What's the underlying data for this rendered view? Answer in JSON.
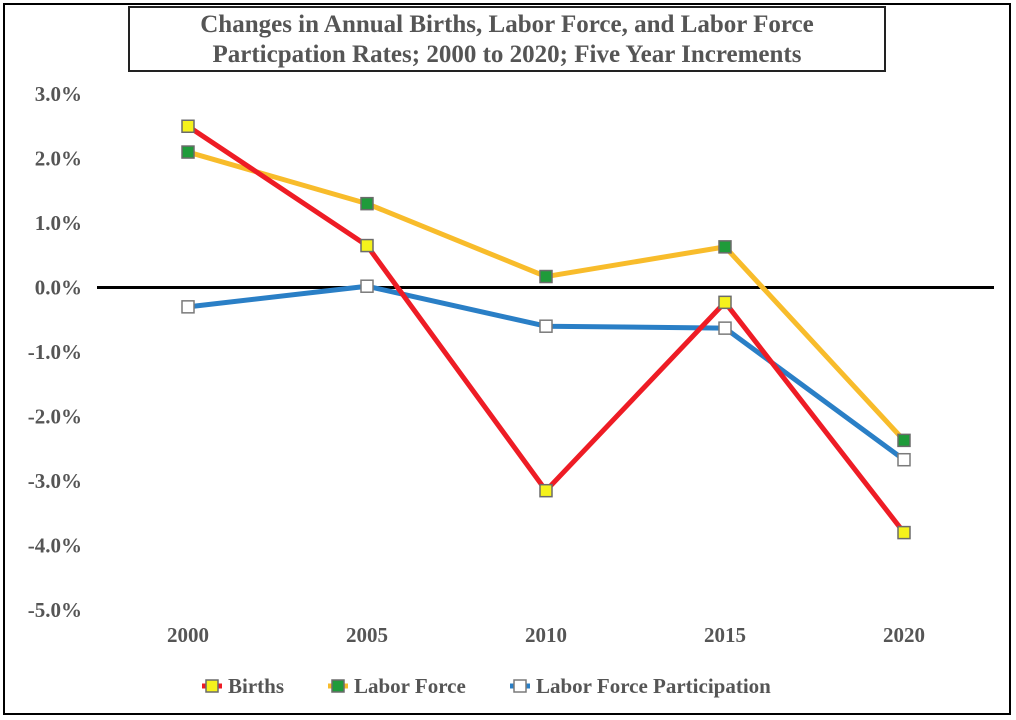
{
  "chart_data": {
    "type": "line",
    "title_line1": "Changes in Annual Births, Labor Force, and Labor Force",
    "title_line2": "Particpation Rates; 2000 to 2020; Five Year Increments",
    "categories": [
      "2000",
      "2005",
      "2010",
      "2015",
      "2020"
    ],
    "y_ticks": [
      "3.0%",
      "2.0%",
      "1.0%",
      "0.0%",
      "-1.0%",
      "-2.0%",
      "-3.0%",
      "-4.0%",
      "-5.0%"
    ],
    "ylim": [
      -5.0,
      3.0
    ],
    "grid": false,
    "legend_position": "bottom",
    "series": [
      {
        "name": "Births",
        "values": [
          2.5,
          0.65,
          -3.15,
          -0.23,
          -3.8
        ],
        "line_color": "#ee1c25",
        "marker_fill": "#f5f21c",
        "marker_stroke": "#6b6b6b"
      },
      {
        "name": "Labor Force",
        "values": [
          2.1,
          1.3,
          0.17,
          0.63,
          -2.37
        ],
        "line_color": "#f8bc2b",
        "marker_fill": "#1f9b3a",
        "marker_stroke": "#6b6b6b"
      },
      {
        "name": "Labor Force Participation",
        "values": [
          -0.3,
          0.02,
          -0.6,
          -0.63,
          -2.67
        ],
        "line_color": "#2a7fc6",
        "marker_fill": "#ffffff",
        "marker_stroke": "#7a7a7a"
      }
    ]
  }
}
